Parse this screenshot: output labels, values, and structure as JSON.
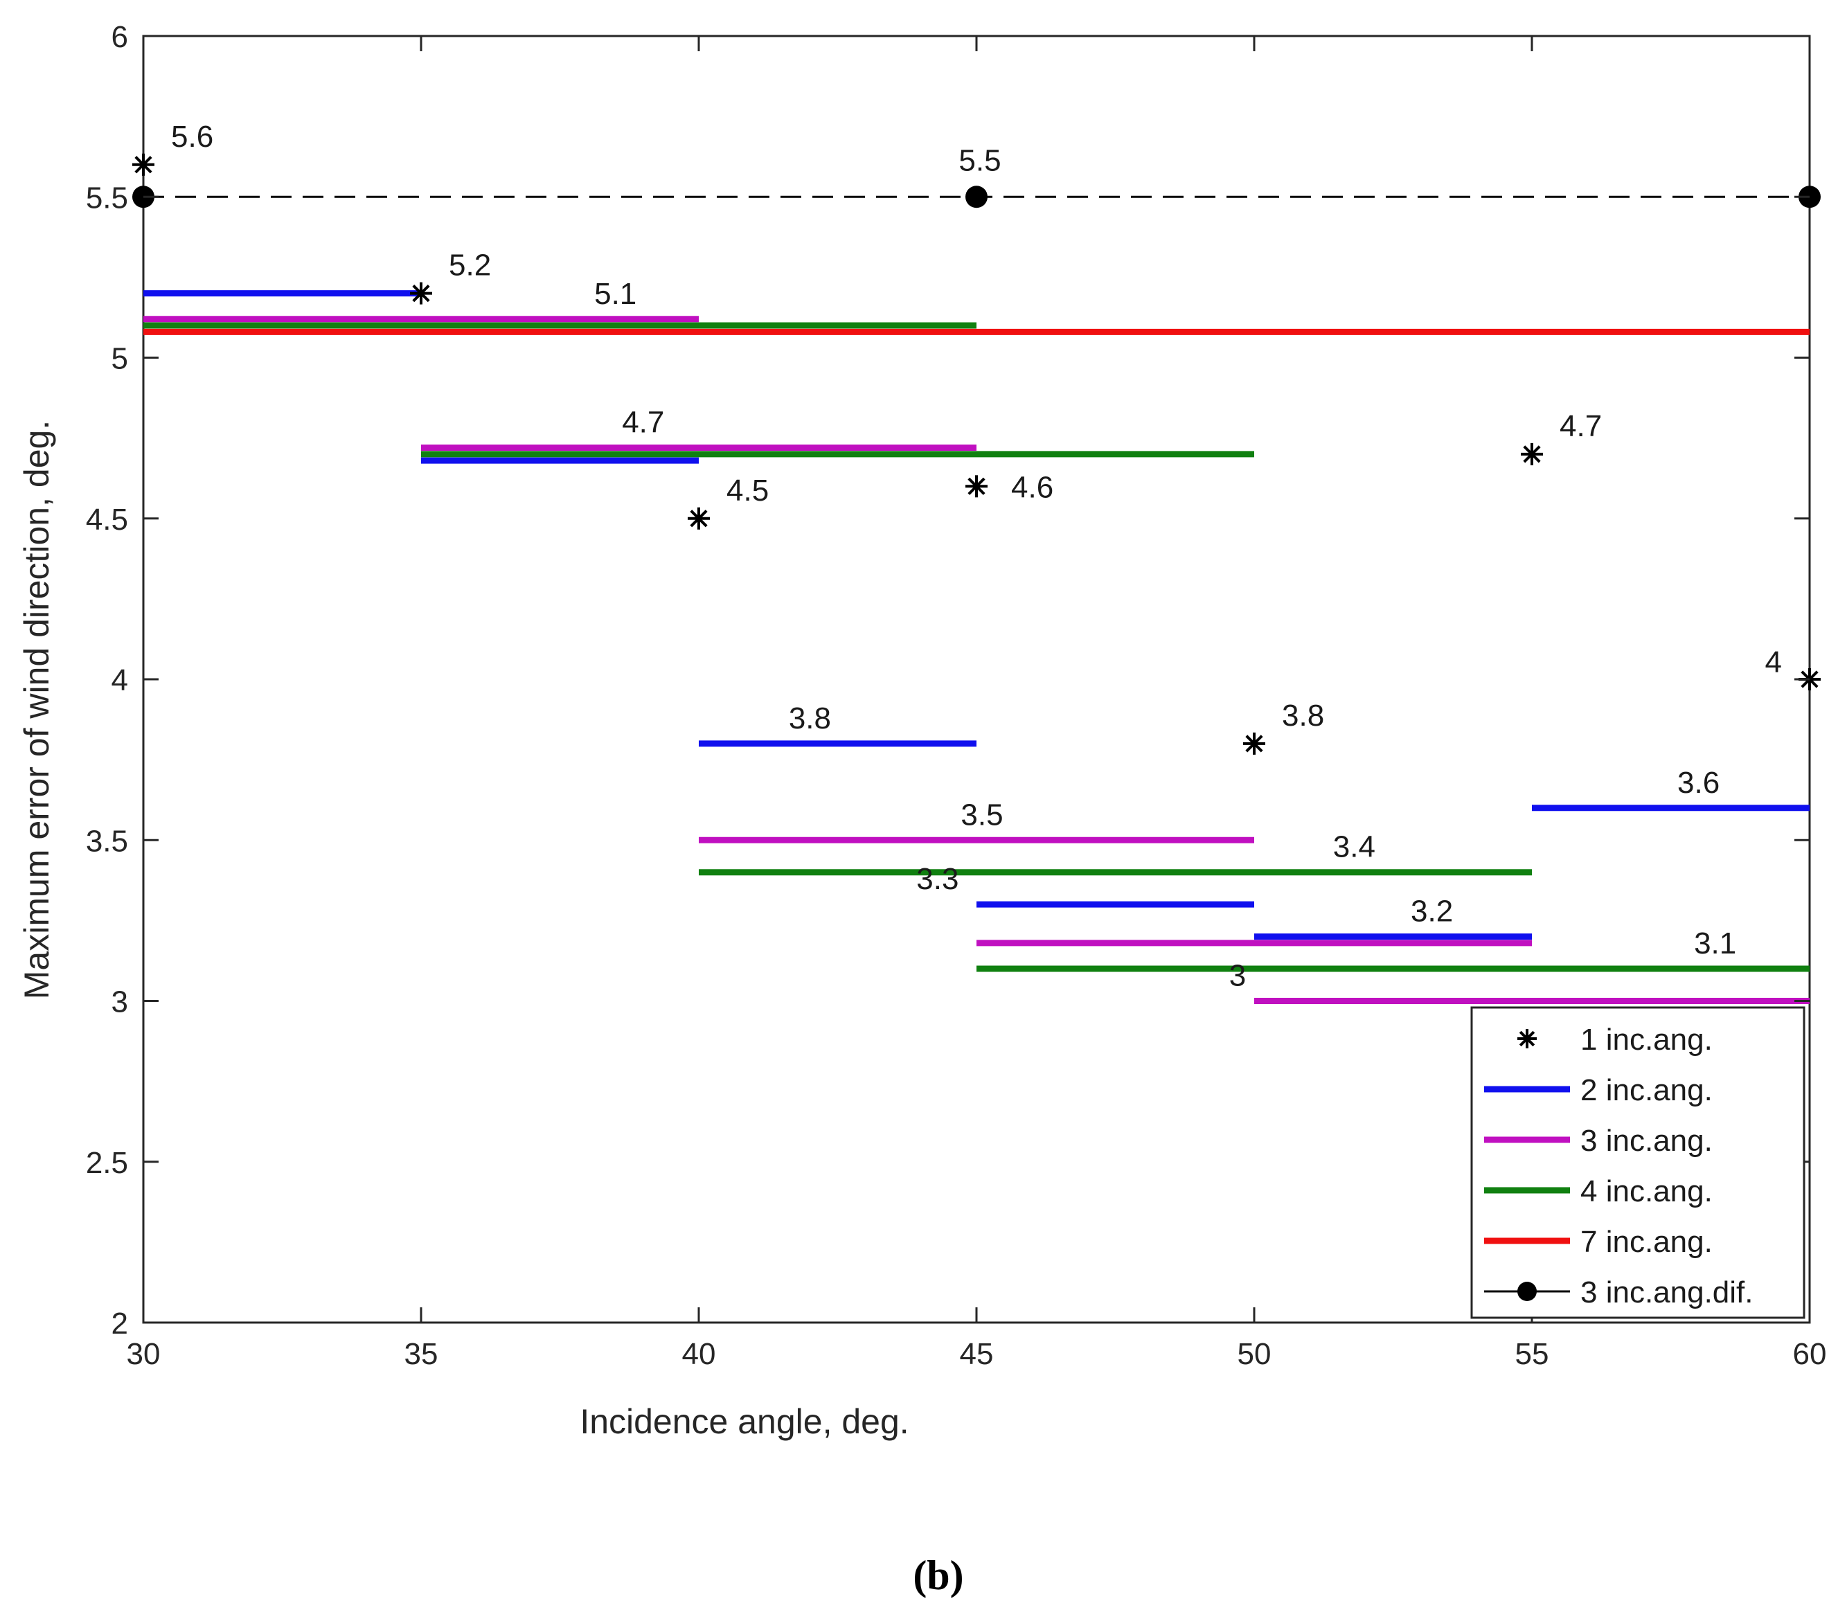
{
  "chart_data": {
    "type": "line",
    "title": "",
    "xlabel": "Incidence angle, deg.",
    "ylabel": "Maximum error of wind direction, deg.",
    "xlim": [
      30,
      60
    ],
    "ylim": [
      2,
      6
    ],
    "xticks": [
      {
        "value": 30,
        "label": "30"
      },
      {
        "value": 35,
        "label": "35"
      },
      {
        "value": 40,
        "label": "40"
      },
      {
        "value": 45,
        "label": "45"
      },
      {
        "value": 50,
        "label": "50"
      },
      {
        "value": 55,
        "label": "55"
      },
      {
        "value": 60,
        "label": "60"
      }
    ],
    "yticks": [
      {
        "value": 2,
        "label": "2"
      },
      {
        "value": 2.5,
        "label": "2.5"
      },
      {
        "value": 3,
        "label": "3"
      },
      {
        "value": 3.5,
        "label": "3.5"
      },
      {
        "value": 4,
        "label": "4"
      },
      {
        "value": 4.5,
        "label": "4.5"
      },
      {
        "value": 5,
        "label": "5"
      },
      {
        "value": 5.5,
        "label": "5.5"
      },
      {
        "value": 6,
        "label": "6"
      }
    ],
    "grid": false,
    "legend_position": "bottom-right",
    "series": [
      {
        "name": "1 inc.ang.",
        "kind": "marker",
        "color": "#000000",
        "points": [
          {
            "x": 30,
            "y": 5.6,
            "label": "5.6",
            "label_side": "right-up"
          },
          {
            "x": 35,
            "y": 5.2,
            "label": "5.2",
            "label_side": "right-up"
          },
          {
            "x": 40,
            "y": 4.5,
            "label": "4.5",
            "label_side": "right-up"
          },
          {
            "x": 45,
            "y": 4.6,
            "label": "4.6",
            "label_side": "right"
          },
          {
            "x": 50,
            "y": 3.8,
            "label": "3.8",
            "label_side": "right-up"
          },
          {
            "x": 55,
            "y": 4.7,
            "label": "4.7",
            "label_side": "right-up"
          },
          {
            "x": 60,
            "y": 4.0,
            "label": "4",
            "label_side": "left-up"
          }
        ]
      },
      {
        "name": "2 inc.ang.",
        "kind": "segment",
        "color": "#1010ee",
        "segments": [
          {
            "x1": 30,
            "x2": 35,
            "y": 5.2,
            "label": ""
          },
          {
            "x1": 35,
            "x2": 40,
            "y": 4.68,
            "label": ""
          },
          {
            "x1": 40,
            "x2": 45,
            "y": 3.8,
            "label": "3.8",
            "label_x": 42
          },
          {
            "x1": 45,
            "x2": 50,
            "y": 3.3,
            "label": "3.3",
            "label_x": 44.3
          },
          {
            "x1": 50,
            "x2": 55,
            "y": 3.2,
            "label": "3.2",
            "label_x": 53.2
          },
          {
            "x1": 55,
            "x2": 60,
            "y": 3.6,
            "label": "3.6",
            "label_x": 58
          }
        ]
      },
      {
        "name": "3 inc.ang.",
        "kind": "segment",
        "color": "#c010c0",
        "segments": [
          {
            "x1": 30,
            "x2": 40,
            "y": 5.12,
            "label": "5.1",
            "label_x": 38.5
          },
          {
            "x1": 35,
            "x2": 45,
            "y": 4.72,
            "label": "4.7",
            "label_x": 39
          },
          {
            "x1": 40,
            "x2": 50,
            "y": 3.5,
            "label": "3.5",
            "label_x": 45.1
          },
          {
            "x1": 45,
            "x2": 55,
            "y": 3.18,
            "label": "",
            "label_x": 0
          },
          {
            "x1": 50,
            "x2": 60,
            "y": 3.0,
            "label": "3",
            "label_x": 49.7
          }
        ]
      },
      {
        "name": "4 inc.ang.",
        "kind": "segment",
        "color": "#108010",
        "segments": [
          {
            "x1": 30,
            "x2": 45,
            "y": 5.1,
            "label": ""
          },
          {
            "x1": 35,
            "x2": 50,
            "y": 4.7,
            "label": ""
          },
          {
            "x1": 40,
            "x2": 55,
            "y": 3.4,
            "label": "3.4",
            "label_x": 51.8
          },
          {
            "x1": 45,
            "x2": 60,
            "y": 3.1,
            "label": "3.1",
            "label_x": 58.3
          }
        ]
      },
      {
        "name": "7 inc.ang.",
        "kind": "segment",
        "color": "#f01010",
        "segments": [
          {
            "x1": 30,
            "x2": 60,
            "y": 5.08,
            "label": ""
          }
        ]
      },
      {
        "name": "3 inc.ang.dif.",
        "kind": "dashed-line-dots",
        "color": "#000000",
        "points": [
          {
            "x": 30,
            "y": 5.5,
            "label": ""
          },
          {
            "x": 45,
            "y": 5.5,
            "label": "5.5"
          },
          {
            "x": 60,
            "y": 5.5,
            "label": ""
          }
        ]
      }
    ],
    "caption": "(b)"
  }
}
